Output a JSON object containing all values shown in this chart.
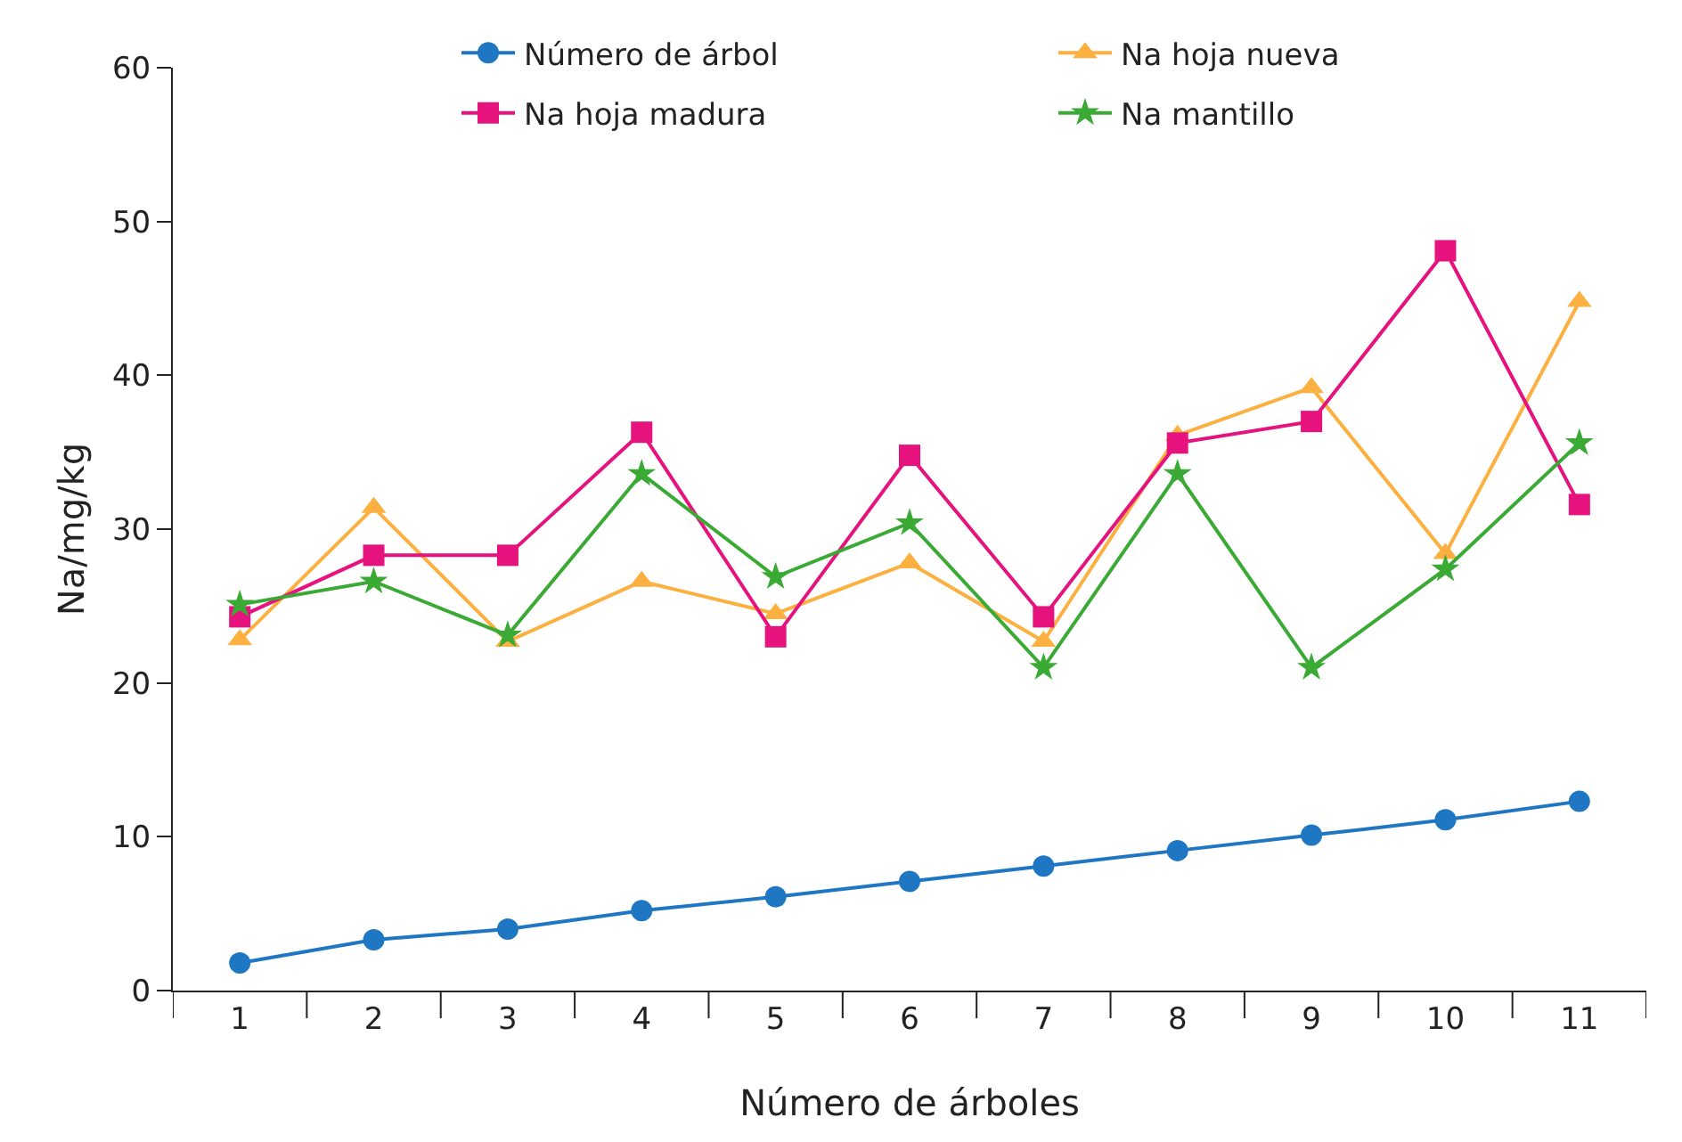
{
  "chart_data": {
    "type": "line",
    "xlabel": "Número de árboles",
    "ylabel": "Na/mg/kg",
    "categories": [
      "1",
      "2",
      "3",
      "4",
      "5",
      "6",
      "7",
      "8",
      "9",
      "10",
      "11"
    ],
    "ylim": [
      0,
      60
    ],
    "yticks": [
      0,
      10,
      20,
      30,
      40,
      50,
      60
    ],
    "grid": false,
    "legend": "top right",
    "series": [
      {
        "name": "Número de árbol",
        "color": "#1f77c4",
        "marker": "circle",
        "values": [
          1.8,
          3.3,
          4.0,
          5.2,
          6.1,
          7.1,
          8.1,
          9.1,
          10.1,
          11.1,
          12.3
        ]
      },
      {
        "name": "Na hoja nueva",
        "color": "#fbb040",
        "marker": "triangle",
        "values": [
          22.8,
          31.4,
          22.7,
          26.6,
          24.5,
          27.8,
          22.7,
          36.1,
          39.2,
          28.4,
          44.8
        ]
      },
      {
        "name": "Na hoja madura",
        "color": "#e6127e",
        "marker": "square",
        "values": [
          24.3,
          28.3,
          28.3,
          36.3,
          23.0,
          34.8,
          24.3,
          35.6,
          37.0,
          48.1,
          31.6
        ]
      },
      {
        "name": "Na mantillo",
        "color": "#3aaa35",
        "marker": "star",
        "values": [
          25.1,
          26.6,
          23.1,
          33.6,
          26.9,
          30.4,
          21.0,
          33.6,
          21.0,
          27.4,
          35.6
        ]
      }
    ]
  }
}
